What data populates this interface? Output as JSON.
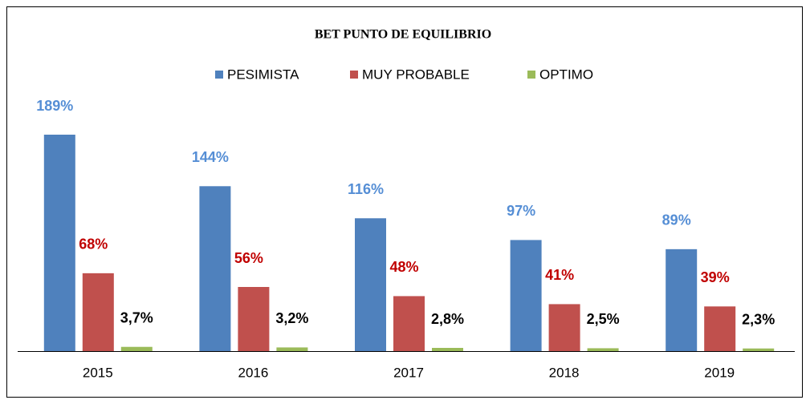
{
  "chart_data": {
    "type": "bar",
    "title": "BET PUNTO DE EQUILIBRIO",
    "categories": [
      "2015",
      "2016",
      "2017",
      "2018",
      "2019"
    ],
    "series": [
      {
        "name": "PESIMISTA",
        "color": "#4f81bd",
        "label_color": "#558ed5",
        "values": [
          189,
          144,
          116,
          97,
          89
        ],
        "value_labels": [
          "189%",
          "144%",
          "116%",
          "97%",
          "89%"
        ]
      },
      {
        "name": "MUY PROBABLE",
        "color": "#c0504d",
        "label_color": "#c00000",
        "values": [
          68,
          56,
          48,
          41,
          39
        ],
        "value_labels": [
          "68%",
          "56%",
          "48%",
          "41%",
          "39%"
        ]
      },
      {
        "name": "OPTIMO",
        "color": "#9bbb59",
        "label_color": "#000000",
        "values": [
          3.7,
          3.2,
          2.8,
          2.5,
          2.3
        ],
        "value_labels": [
          "3,7%",
          "3,2%",
          "2,8%",
          "2,5%",
          "2,3%"
        ]
      }
    ],
    "legend": "top"
  }
}
